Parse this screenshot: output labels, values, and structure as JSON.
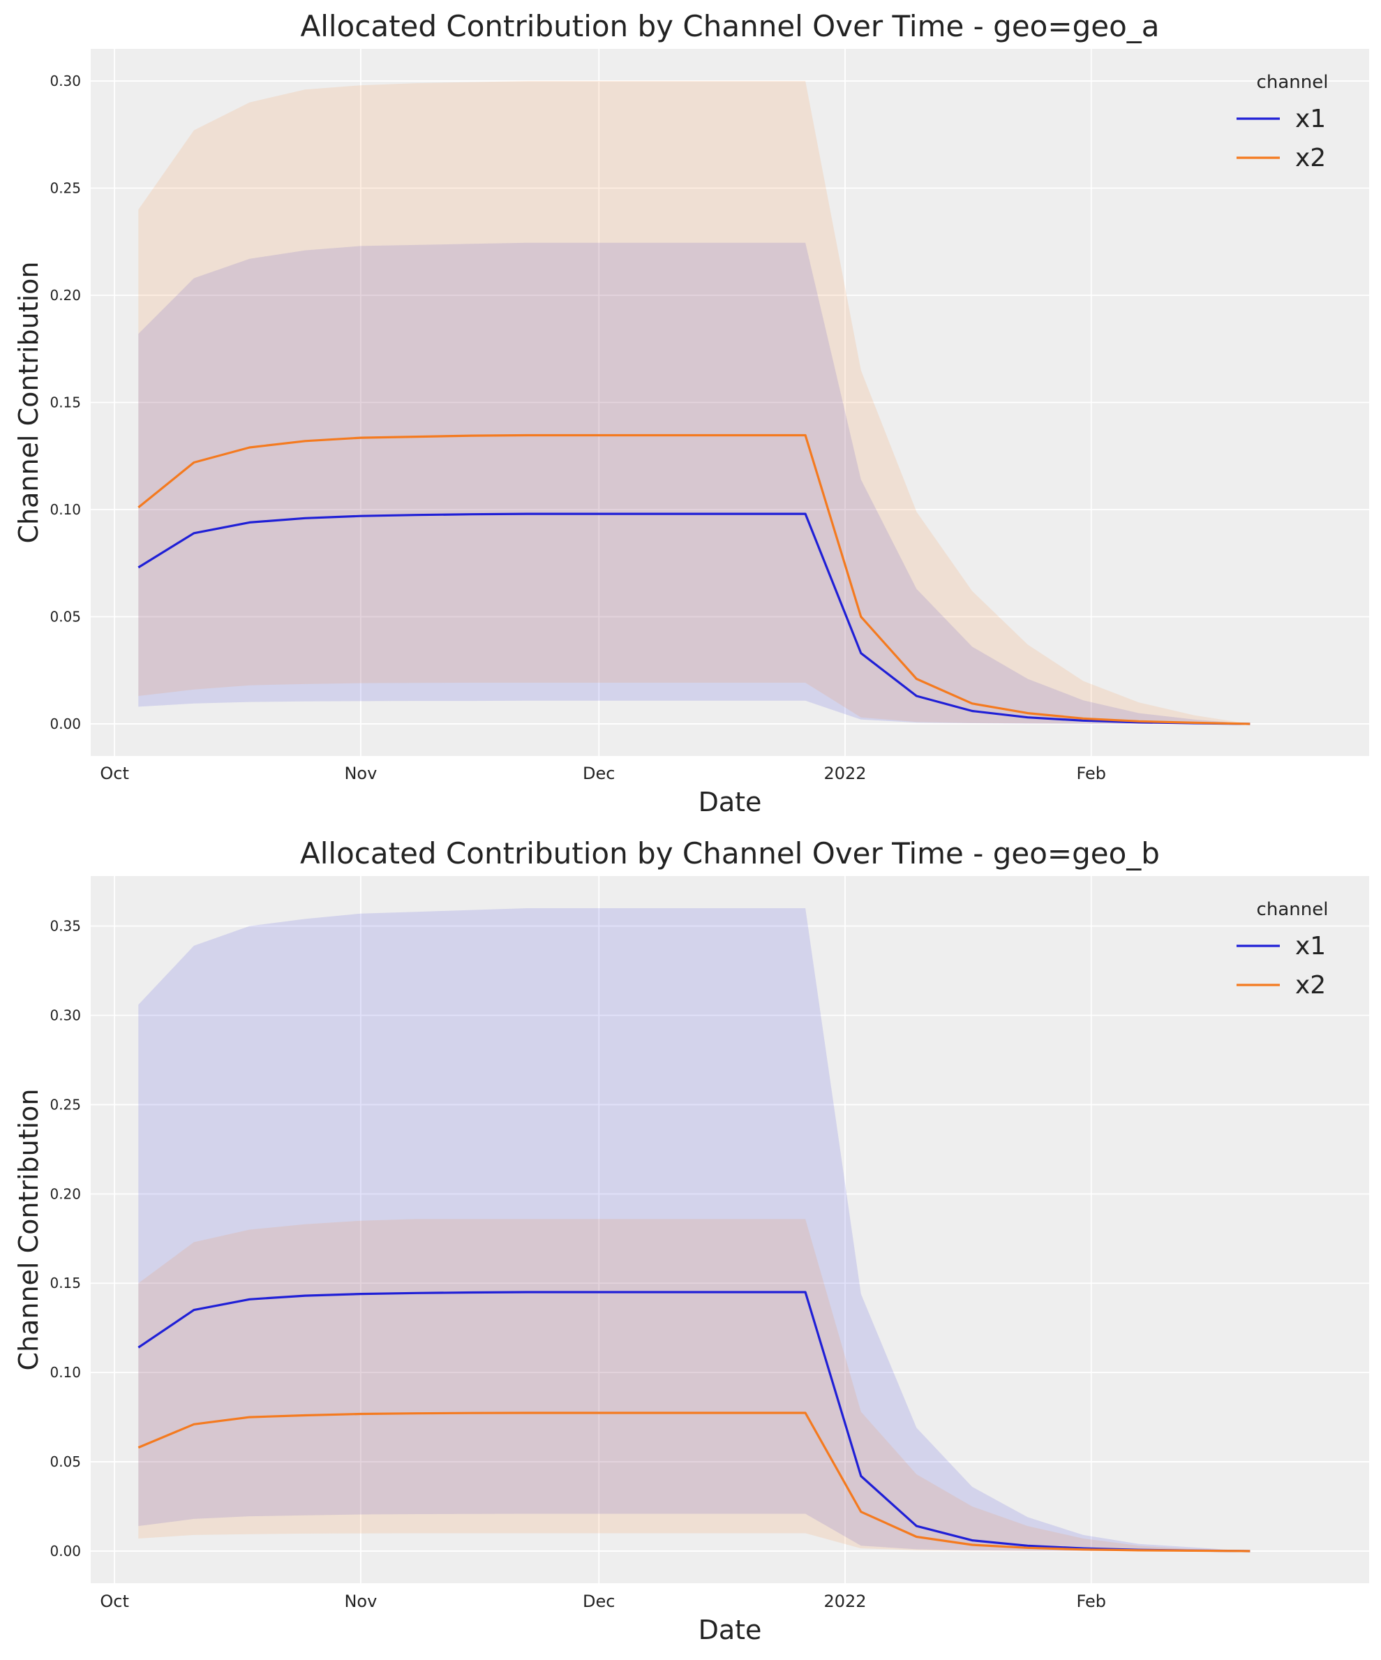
{
  "chart_data": [
    {
      "type": "line",
      "title": "Allocated Contribution by Channel Over Time - geo=geo_a",
      "xlabel": "Date",
      "ylabel": "Channel Contribution",
      "x": [
        "2021-10-04",
        "2021-10-11",
        "2021-10-18",
        "2021-10-25",
        "2021-11-01",
        "2021-11-08",
        "2021-11-15",
        "2021-11-22",
        "2021-11-29",
        "2021-12-06",
        "2021-12-13",
        "2021-12-20",
        "2021-12-27",
        "2022-01-03",
        "2022-01-10",
        "2022-01-17",
        "2022-01-24",
        "2022-01-31",
        "2022-02-07",
        "2022-02-14",
        "2022-02-21"
      ],
      "xticks": [
        {
          "date": "2021-10-01",
          "label": "Oct"
        },
        {
          "date": "2021-11-01",
          "label": "Nov"
        },
        {
          "date": "2021-12-01",
          "label": "Dec"
        },
        {
          "date": "2022-01-01",
          "label": "2022"
        },
        {
          "date": "2022-02-01",
          "label": "Feb"
        }
      ],
      "xlim": [
        "2021-09-28",
        "2022-03-08"
      ],
      "ylim": [
        -0.015,
        0.315
      ],
      "yticks": [
        "0.00",
        "0.05",
        "0.10",
        "0.15",
        "0.20",
        "0.25",
        "0.30"
      ],
      "grid": true,
      "legend": {
        "title": "channel",
        "position": "top-right"
      },
      "series": [
        {
          "name": "x1",
          "color": "#1f1fd6",
          "values": [
            0.073,
            0.089,
            0.094,
            0.096,
            0.097,
            0.0975,
            0.0978,
            0.098,
            0.098,
            0.098,
            0.098,
            0.098,
            0.098,
            0.033,
            0.013,
            0.006,
            0.003,
            0.0015,
            0.0007,
            0.0003,
            0.0
          ],
          "band_lower": [
            0.008,
            0.0095,
            0.0102,
            0.0105,
            0.0106,
            0.0107,
            0.0107,
            0.0108,
            0.0108,
            0.0108,
            0.0108,
            0.0108,
            0.0108,
            0.002,
            0.0006,
            0.0003,
            0.0001,
            0.0,
            0.0,
            0.0,
            0.0
          ],
          "band_upper": [
            0.182,
            0.208,
            0.217,
            0.221,
            0.223,
            0.2235,
            0.224,
            0.2245,
            0.2245,
            0.2245,
            0.2245,
            0.2245,
            0.2245,
            0.114,
            0.063,
            0.036,
            0.021,
            0.011,
            0.005,
            0.002,
            0.0
          ]
        },
        {
          "name": "x2",
          "color": "#f47a1f",
          "values": [
            0.101,
            0.122,
            0.129,
            0.132,
            0.1335,
            0.134,
            0.1345,
            0.1347,
            0.1347,
            0.1347,
            0.1347,
            0.1347,
            0.1347,
            0.05,
            0.021,
            0.0095,
            0.005,
            0.0025,
            0.0012,
            0.0005,
            0.0
          ],
          "band_lower": [
            0.013,
            0.016,
            0.018,
            0.0186,
            0.019,
            0.0191,
            0.0192,
            0.0192,
            0.0192,
            0.0192,
            0.0192,
            0.0192,
            0.0192,
            0.003,
            0.0009,
            0.0004,
            0.0002,
            0.0001,
            0.0,
            0.0,
            0.0
          ],
          "band_upper": [
            0.24,
            0.277,
            0.29,
            0.296,
            0.298,
            0.299,
            0.2995,
            0.3,
            0.3,
            0.3,
            0.3,
            0.3,
            0.3,
            0.165,
            0.099,
            0.062,
            0.037,
            0.02,
            0.01,
            0.004,
            0.0
          ]
        }
      ]
    },
    {
      "type": "line",
      "title": "Allocated Contribution by Channel Over Time - geo=geo_b",
      "xlabel": "Date",
      "ylabel": "Channel Contribution",
      "x": [
        "2021-10-04",
        "2021-10-11",
        "2021-10-18",
        "2021-10-25",
        "2021-11-01",
        "2021-11-08",
        "2021-11-15",
        "2021-11-22",
        "2021-11-29",
        "2021-12-06",
        "2021-12-13",
        "2021-12-20",
        "2021-12-27",
        "2022-01-03",
        "2022-01-10",
        "2022-01-17",
        "2022-01-24",
        "2022-01-31",
        "2022-02-07",
        "2022-02-14",
        "2022-02-21"
      ],
      "xticks": [
        {
          "date": "2021-10-01",
          "label": "Oct"
        },
        {
          "date": "2021-11-01",
          "label": "Nov"
        },
        {
          "date": "2021-12-01",
          "label": "Dec"
        },
        {
          "date": "2022-01-01",
          "label": "2022"
        },
        {
          "date": "2022-02-01",
          "label": "Feb"
        }
      ],
      "xlim": [
        "2021-09-28",
        "2022-03-08"
      ],
      "ylim": [
        -0.018,
        0.378
      ],
      "yticks": [
        "0.00",
        "0.05",
        "0.10",
        "0.15",
        "0.20",
        "0.25",
        "0.30",
        "0.35"
      ],
      "grid": true,
      "legend": {
        "title": "channel",
        "position": "top-right"
      },
      "series": [
        {
          "name": "x1",
          "color": "#1f1fd6",
          "values": [
            0.114,
            0.135,
            0.141,
            0.143,
            0.144,
            0.1445,
            0.1448,
            0.145,
            0.145,
            0.145,
            0.145,
            0.145,
            0.145,
            0.042,
            0.014,
            0.006,
            0.003,
            0.0015,
            0.0007,
            0.0003,
            0.0
          ],
          "band_lower": [
            0.014,
            0.018,
            0.0195,
            0.02,
            0.0205,
            0.0207,
            0.0208,
            0.0209,
            0.0209,
            0.0209,
            0.0209,
            0.0209,
            0.0209,
            0.003,
            0.001,
            0.0004,
            0.0002,
            0.0001,
            0.0,
            0.0,
            0.0
          ],
          "band_upper": [
            0.306,
            0.339,
            0.35,
            0.354,
            0.357,
            0.358,
            0.359,
            0.36,
            0.36,
            0.36,
            0.36,
            0.36,
            0.36,
            0.144,
            0.069,
            0.036,
            0.019,
            0.009,
            0.004,
            0.002,
            0.0
          ]
        },
        {
          "name": "x2",
          "color": "#f47a1f",
          "values": [
            0.058,
            0.071,
            0.075,
            0.076,
            0.0768,
            0.0771,
            0.0773,
            0.0774,
            0.0774,
            0.0774,
            0.0774,
            0.0774,
            0.0774,
            0.022,
            0.008,
            0.0035,
            0.0018,
            0.0009,
            0.0004,
            0.0002,
            0.0
          ],
          "band_lower": [
            0.007,
            0.009,
            0.0095,
            0.0098,
            0.0099,
            0.01,
            0.01,
            0.01,
            0.01,
            0.01,
            0.01,
            0.01,
            0.01,
            0.0015,
            0.0005,
            0.0002,
            0.0001,
            0.0,
            0.0,
            0.0,
            0.0
          ],
          "band_upper": [
            0.15,
            0.173,
            0.18,
            0.183,
            0.185,
            0.186,
            0.186,
            0.186,
            0.186,
            0.186,
            0.186,
            0.186,
            0.186,
            0.078,
            0.043,
            0.025,
            0.014,
            0.007,
            0.003,
            0.001,
            0.0
          ]
        }
      ]
    }
  ]
}
